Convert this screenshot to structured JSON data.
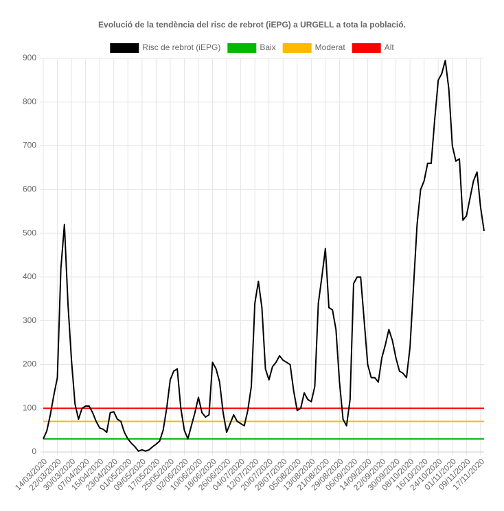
{
  "chart_data": {
    "type": "line",
    "title": "Evolució de la tendència del risc de rebrot (iEPG) a URGELL a tota la població.",
    "categories": [
      "14/03/2020",
      null,
      null,
      null,
      "22/03/2020",
      null,
      null,
      null,
      "30/03/2020",
      null,
      null,
      null,
      "07/04/2020",
      null,
      null,
      null,
      "15/04/2020",
      null,
      null,
      null,
      "23/04/2020",
      null,
      null,
      null,
      "01/05/2020",
      null,
      null,
      null,
      "09/05/2020",
      null,
      null,
      null,
      "17/05/2020",
      null,
      null,
      null,
      "25/05/2020",
      null,
      null,
      null,
      "02/06/2020",
      null,
      null,
      null,
      "10/06/2020",
      null,
      null,
      null,
      "18/06/2020",
      null,
      null,
      null,
      "26/06/2020",
      null,
      null,
      null,
      "04/07/2020",
      null,
      null,
      null,
      "12/07/2020",
      null,
      null,
      null,
      "20/07/2020",
      null,
      null,
      null,
      "28/07/2020",
      null,
      null,
      null,
      "05/08/2020",
      null,
      null,
      null,
      "13/08/2020",
      null,
      null,
      null,
      "21/08/2020",
      null,
      null,
      null,
      "29/08/2020",
      null,
      null,
      null,
      "06/09/2020",
      null,
      null,
      null,
      "14/09/2020",
      null,
      null,
      null,
      "22/09/2020",
      null,
      null,
      null,
      "30/09/2020",
      null,
      null,
      null,
      "08/10/2020",
      null,
      null,
      null,
      "16/10/2020",
      null,
      null,
      null,
      "24/10/2020",
      null,
      null,
      null,
      "01/11/2020",
      null,
      null,
      null,
      "09/11/2020",
      null,
      null,
      null,
      "17/11/2020",
      null
    ],
    "series": [
      {
        "name": "Risc de rebrot (iEPG)",
        "color": "#000000",
        "values": [
          30,
          48,
          85,
          130,
          170,
          420,
          520,
          340,
          210,
          110,
          75,
          100,
          105,
          105,
          90,
          70,
          55,
          52,
          45,
          90,
          92,
          75,
          70,
          45,
          30,
          20,
          12,
          2,
          5,
          2,
          5,
          12,
          18,
          25,
          50,
          100,
          165,
          185,
          190,
          100,
          50,
          30,
          60,
          90,
          125,
          90,
          80,
          85,
          205,
          190,
          160,
          90,
          45,
          65,
          85,
          70,
          65,
          60,
          95,
          150,
          340,
          390,
          330,
          190,
          165,
          195,
          205,
          220,
          210,
          205,
          200,
          140,
          95,
          100,
          135,
          120,
          115,
          150,
          340,
          400,
          465,
          330,
          325,
          280,
          160,
          75,
          60,
          120,
          385,
          400,
          400,
          300,
          200,
          170,
          170,
          160,
          215,
          245,
          280,
          255,
          215,
          185,
          180,
          170,
          240,
          380,
          520,
          600,
          620,
          660,
          660,
          760,
          850,
          865,
          895,
          830,
          700,
          665,
          670,
          530,
          540,
          580,
          620,
          640,
          560,
          505
        ]
      }
    ],
    "reference_lines": [
      {
        "name": "Baix",
        "color": "#00b900",
        "value": 30
      },
      {
        "name": "Moderat",
        "color": "#ffb900",
        "value": 70
      },
      {
        "name": "Alt",
        "color": "#ff0000",
        "value": 100
      }
    ],
    "ylim": [
      0,
      900
    ],
    "yticks": [
      0,
      100,
      200,
      300,
      400,
      500,
      600,
      700,
      800,
      900
    ],
    "grid": true,
    "legend": "top"
  }
}
